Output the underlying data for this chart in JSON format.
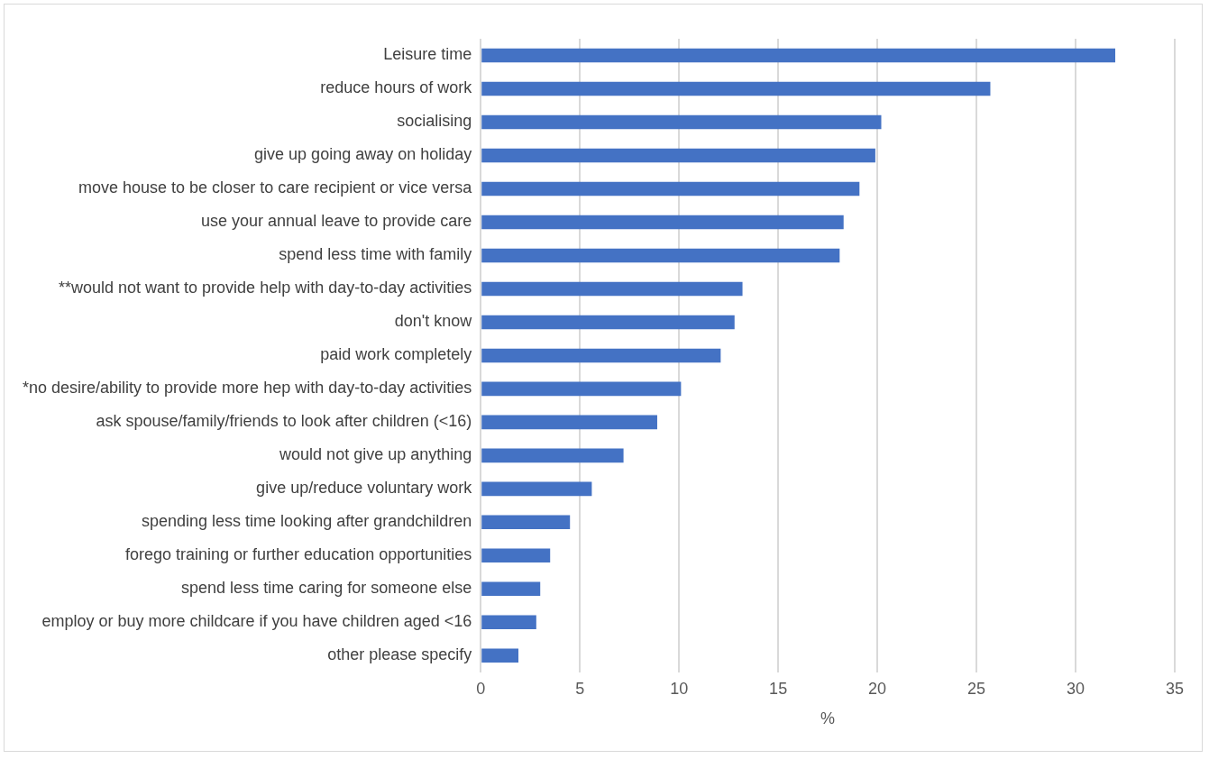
{
  "chart_data": {
    "type": "bar",
    "orientation": "horizontal",
    "xlabel": "%",
    "categories": [
      "Leisure time",
      "reduce hours of work",
      "socialising",
      "give up going away on holiday",
      "move house to be closer to care recipient or vice versa",
      "use your annual leave to provide care",
      "spend less time with family",
      "**would not want to provide help with day-to-day activities",
      "don't know",
      "paid work completely",
      "*no desire/ability to provide more hep with day-to-day activities",
      "ask spouse/family/friends to look after children (<16)",
      "would not give up anything",
      "give up/reduce voluntary work",
      "spending less time looking after grandchildren",
      "forego training or further education opportunities",
      "spend less time caring for someone else",
      "employ or buy more childcare if you have children aged <16",
      "other please specify"
    ],
    "values": [
      32.0,
      25.7,
      20.2,
      19.9,
      19.1,
      18.3,
      18.1,
      13.2,
      12.8,
      12.1,
      10.1,
      8.9,
      7.2,
      5.6,
      4.5,
      3.5,
      3.0,
      2.8,
      1.9
    ],
    "color": "#4472c4",
    "xlim": [
      0,
      35
    ],
    "xticks": [
      0,
      5,
      10,
      15,
      20,
      25,
      30,
      35
    ],
    "grid": "x",
    "legend": false
  }
}
